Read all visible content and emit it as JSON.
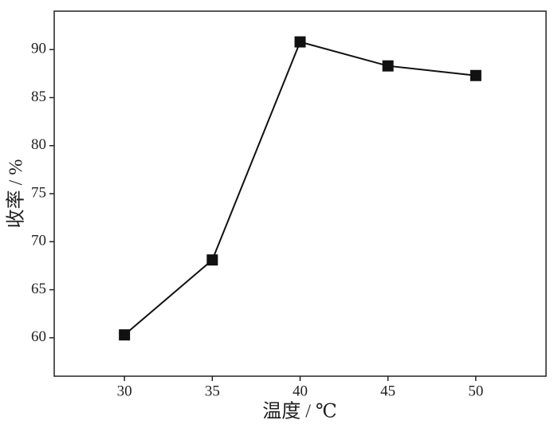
{
  "chart_data": {
    "type": "line",
    "x": [
      30,
      35,
      40,
      45,
      50
    ],
    "series": [
      {
        "name": "收率",
        "color": "#111111",
        "values": [
          60.3,
          68.1,
          90.8,
          88.3,
          87.3
        ]
      }
    ],
    "xlim": [
      26,
      54
    ],
    "xticks": [
      30,
      35,
      40,
      45,
      50
    ],
    "ylim": [
      56,
      94
    ],
    "yticks": [
      60,
      65,
      70,
      75,
      80,
      85,
      90
    ],
    "xlabel": "温度 / ℃",
    "ylabel": "收率 / %"
  }
}
